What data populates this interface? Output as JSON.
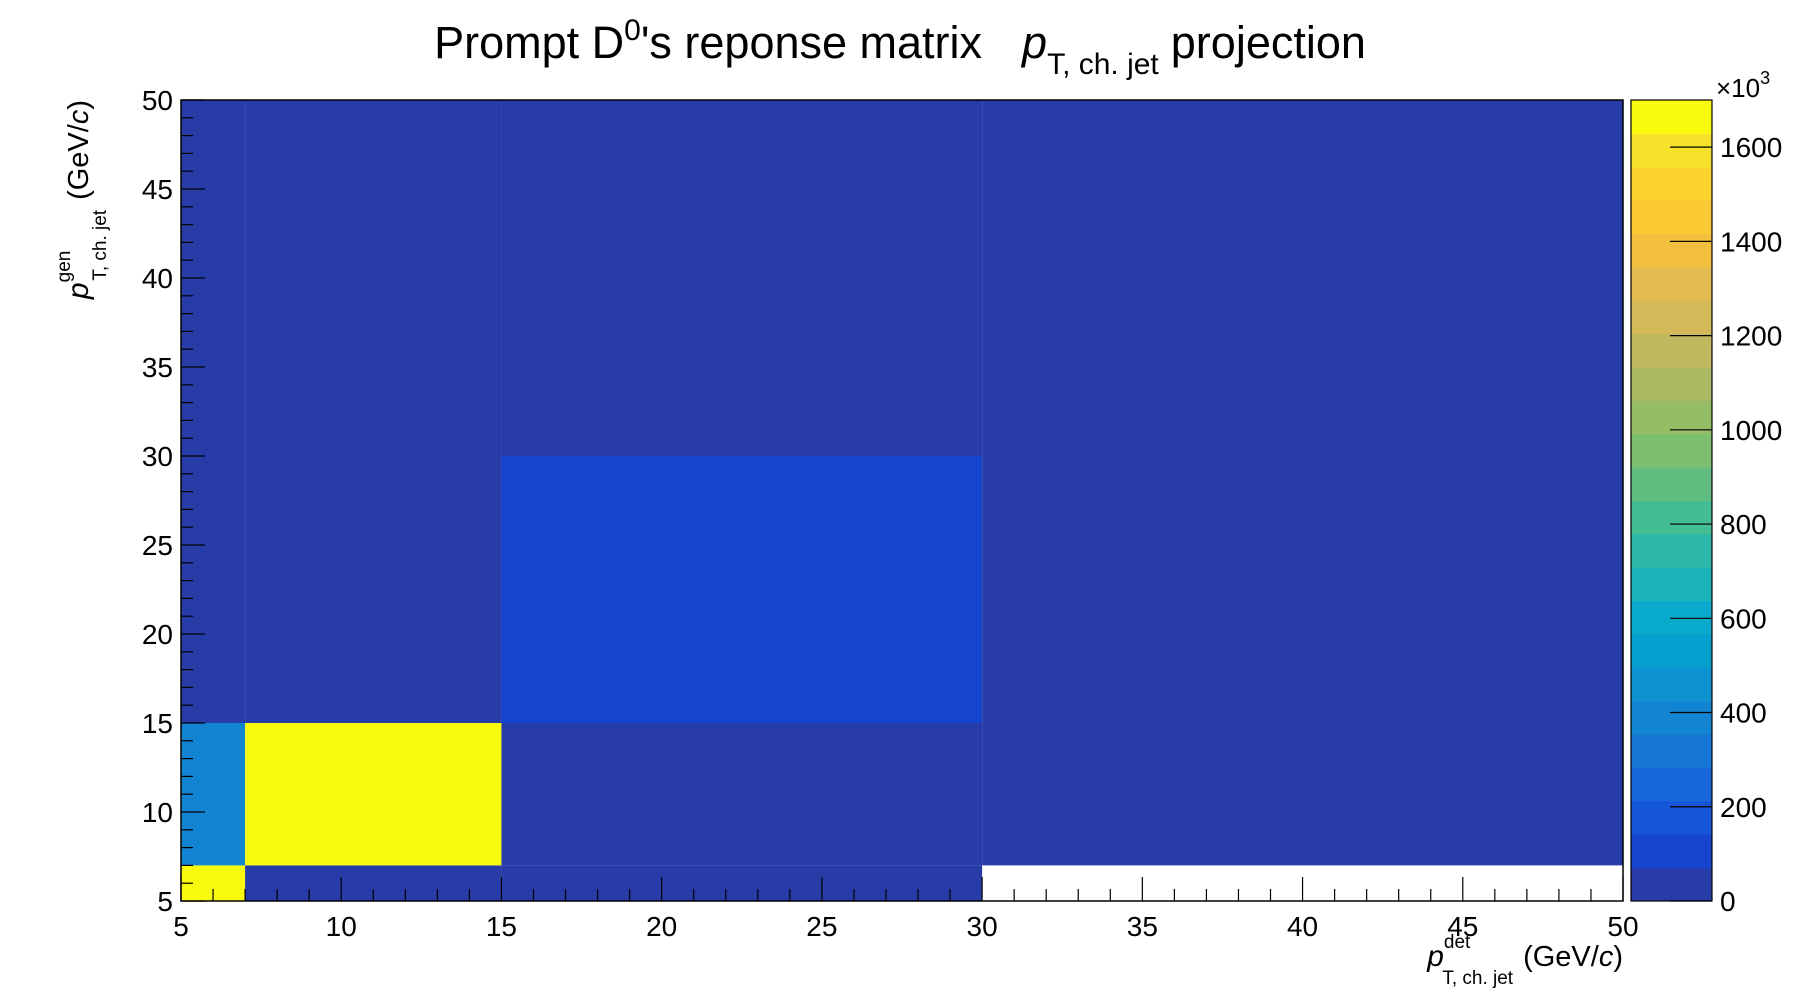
{
  "chart_data": {
    "type": "heatmap",
    "title": "Prompt D^0's reponse matrix p_T, ch. jet projection",
    "title_parts": {
      "main": "Prompt D",
      "sup": "0",
      "after_sup": "'s reponse matrix",
      "symbol": "p",
      "symbol_sub": "T, ch. jet",
      "tail": "projection"
    },
    "xlabel": "p_T, ch. jet^det (GeV/c)",
    "xlabel_parts": {
      "symbol": "p",
      "sub": "T, ch. jet",
      "sup": "det",
      "unit_pre": "(GeV/",
      "unit_c": "c",
      "unit_post": ")"
    },
    "ylabel": "p_T, ch. jet^gen (GeV/c)",
    "ylabel_parts": {
      "symbol": "p",
      "sub": "T, ch. jet",
      "sup": "gen",
      "unit_pre": "(GeV/",
      "unit_c": "c",
      "unit_post": ")"
    },
    "xlim": [
      5,
      50
    ],
    "ylim": [
      5,
      50
    ],
    "x_ticks": [
      "5",
      "10",
      "15",
      "20",
      "25",
      "30",
      "35",
      "40",
      "45",
      "50"
    ],
    "y_ticks": [
      "5",
      "10",
      "15",
      "20",
      "25",
      "30",
      "35",
      "40",
      "45",
      "50"
    ],
    "x_bin_edges": [
      5,
      7,
      15,
      30,
      50
    ],
    "y_bin_edges": [
      5,
      7,
      15,
      30,
      50
    ],
    "z_values": [
      [
        1680000,
        0,
        0,
        null
      ],
      [
        420000,
        1680000,
        0,
        0
      ],
      [
        0,
        0,
        130000,
        0
      ],
      [
        0,
        0,
        0,
        0
      ]
    ],
    "z_multiplier": "×10",
    "z_multiplier_exp": "3",
    "z_range": [
      0,
      1700000
    ],
    "z_ticks": [
      "0",
      "200",
      "400",
      "600",
      "800",
      "1000",
      "1200",
      "1400",
      "1600"
    ],
    "colormap": [
      "#283CA8",
      "#1545CF",
      "#1556D9",
      "#1766DC",
      "#1676D6",
      "#1384D1",
      "#0E93D1",
      "#06A0CF",
      "#0AAACC",
      "#1AB3BA",
      "#2DB7A8",
      "#44BD94",
      "#62BE80",
      "#7DBF6F",
      "#95BD66",
      "#ABBA62",
      "#C0B85E",
      "#D4B959",
      "#E4BB4F",
      "#F3BF3F",
      "#FCC834",
      "#FAD42D",
      "#F6E22A",
      "#F9FB0E"
    ],
    "grid": false,
    "legend": "colorbar-right"
  }
}
